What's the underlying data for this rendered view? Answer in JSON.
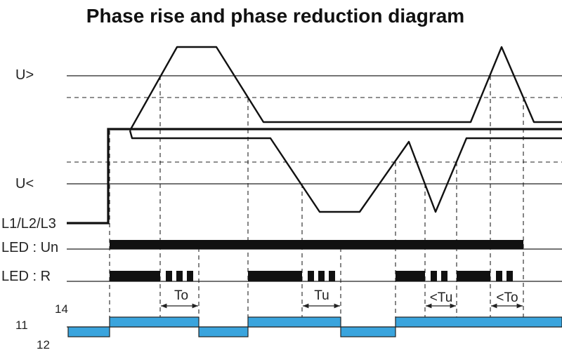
{
  "title": "Phase rise and phase reduction diagram",
  "labels": {
    "u_high": "U>",
    "u_low": "U<",
    "supply": "L1/L2/L3",
    "led_un": "LED : Un",
    "led_r": "LED : R",
    "contact_11": "11",
    "contact_14": "14",
    "contact_12": "12"
  },
  "timing": {
    "to": "To",
    "tu": "Tu",
    "lt_tu": "<Tu",
    "lt_to": "<To"
  },
  "colors": {
    "relay_fill": "#3aa4dd",
    "ink": "#111111"
  }
}
